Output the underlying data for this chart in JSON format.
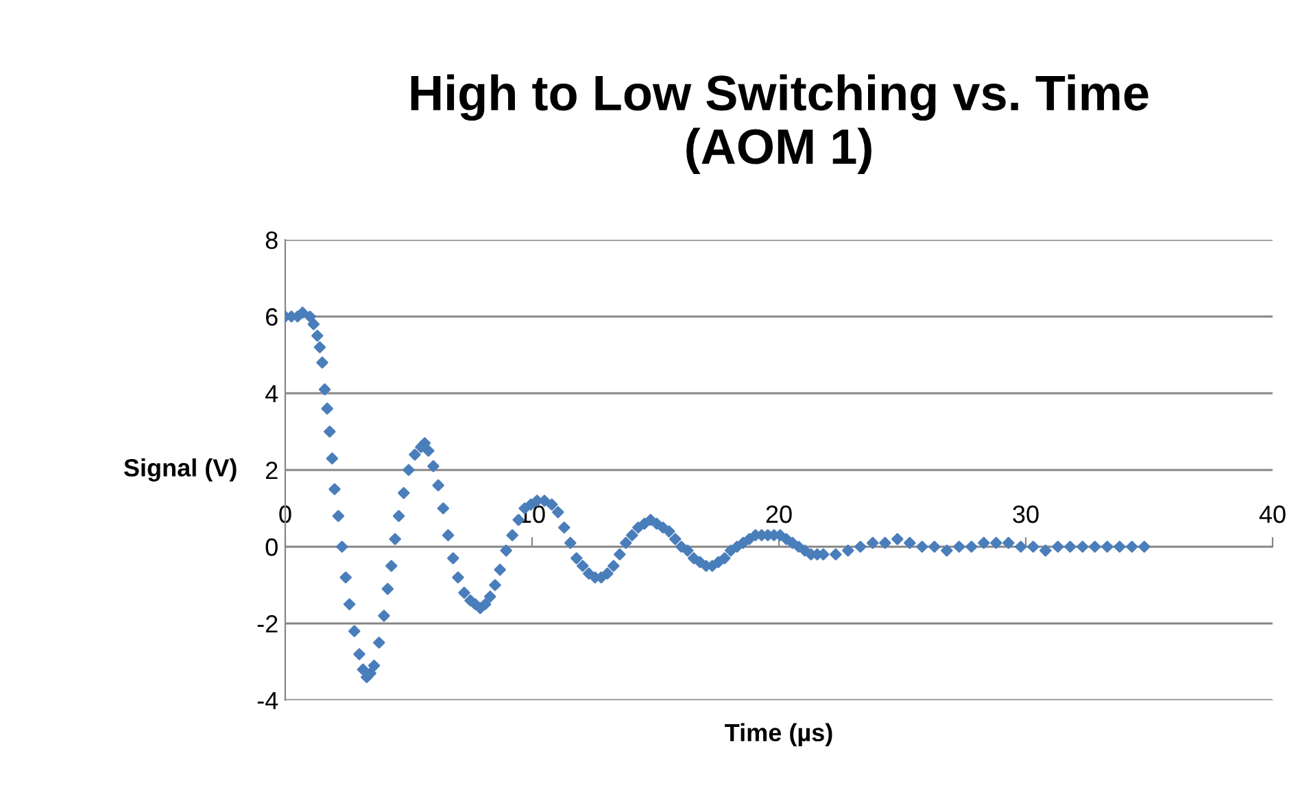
{
  "chart_data": {
    "type": "scatter",
    "title": "High to Low Switching vs. Time\n(AOM 1)",
    "xlabel": "Time (µs)",
    "ylabel": "Signal (V)",
    "series": [
      {
        "color": "#4a7ebb",
        "x": [
          0,
          0.25,
          0.5,
          0.7,
          1.0,
          1.15,
          1.3,
          1.4,
          1.5,
          1.6,
          1.7,
          1.8,
          1.9,
          2.0,
          2.15,
          2.3,
          2.45,
          2.6,
          2.8,
          3.0,
          3.15,
          3.3,
          3.45,
          3.6,
          3.8,
          4.0,
          4.15,
          4.3,
          4.45,
          4.6,
          4.8,
          5.0,
          5.25,
          5.5,
          5.65,
          5.8,
          6.0,
          6.2,
          6.4,
          6.6,
          6.8,
          7.0,
          7.25,
          7.5,
          7.7,
          7.9,
          8.1,
          8.3,
          8.5,
          8.7,
          8.95,
          9.2,
          9.45,
          9.7,
          9.95,
          10.2,
          10.5,
          10.8,
          11.05,
          11.3,
          11.55,
          11.8,
          12.05,
          12.3,
          12.55,
          12.8,
          13.05,
          13.3,
          13.55,
          13.8,
          14.05,
          14.3,
          14.55,
          14.8,
          15.05,
          15.3,
          15.55,
          15.8,
          16.05,
          16.3,
          16.55,
          16.8,
          17.05,
          17.3,
          17.55,
          17.8,
          18.05,
          18.3,
          18.55,
          18.8,
          19.05,
          19.3,
          19.55,
          19.8,
          20.05,
          20.3,
          20.55,
          20.8,
          21.05,
          21.3,
          21.55,
          21.8,
          22.3,
          22.8,
          23.3,
          23.8,
          24.3,
          24.8,
          25.3,
          25.8,
          26.3,
          26.8,
          27.3,
          27.8,
          28.3,
          28.8,
          29.3,
          29.8,
          30.3,
          30.8,
          31.3,
          31.8,
          32.3,
          32.8,
          33.3,
          33.8,
          34.3,
          34.8
        ],
        "values": [
          6.0,
          6.0,
          6.0,
          6.1,
          6.0,
          5.8,
          5.5,
          5.2,
          4.8,
          4.1,
          3.6,
          3.0,
          2.3,
          1.5,
          0.8,
          0,
          -0.8,
          -1.5,
          -2.2,
          -2.8,
          -3.2,
          -3.4,
          -3.3,
          -3.1,
          -2.5,
          -1.8,
          -1.1,
          -0.5,
          0.2,
          0.8,
          1.4,
          2.0,
          2.4,
          2.6,
          2.7,
          2.5,
          2.1,
          1.6,
          1.0,
          0.3,
          -0.3,
          -0.8,
          -1.2,
          -1.4,
          -1.5,
          -1.6,
          -1.5,
          -1.3,
          -1.0,
          -0.6,
          -0.1,
          0.3,
          0.7,
          1.0,
          1.1,
          1.2,
          1.2,
          1.1,
          0.9,
          0.5,
          0.1,
          -0.3,
          -0.5,
          -0.7,
          -0.8,
          -0.8,
          -0.7,
          -0.5,
          -0.2,
          0.1,
          0.3,
          0.5,
          0.6,
          0.7,
          0.6,
          0.5,
          0.4,
          0.2,
          0.0,
          -0.1,
          -0.3,
          -0.4,
          -0.5,
          -0.5,
          -0.4,
          -0.3,
          -0.1,
          0.0,
          0.1,
          0.2,
          0.3,
          0.3,
          0.3,
          0.3,
          0.3,
          0.2,
          0.1,
          0.0,
          -0.1,
          -0.2,
          -0.2,
          -0.2,
          -0.2,
          -0.1,
          0.0,
          0.1,
          0.1,
          0.2,
          0.1,
          0.0,
          0.0,
          -0.1,
          0.0,
          0.0,
          0.1,
          0.1,
          0.1,
          0.0,
          0.0,
          -0.1,
          0.0,
          0.0,
          0.0,
          0.0,
          0.0,
          0.0,
          0.0,
          0.0
        ]
      }
    ],
    "xlim": [
      0,
      40
    ],
    "xticks": [
      0,
      10,
      20,
      30,
      40
    ],
    "ylim": [
      -4,
      8
    ],
    "yticks": [
      -4,
      -2,
      0,
      2,
      4,
      6,
      8
    ],
    "grid": "y",
    "legend": false,
    "marker": "diamond"
  }
}
